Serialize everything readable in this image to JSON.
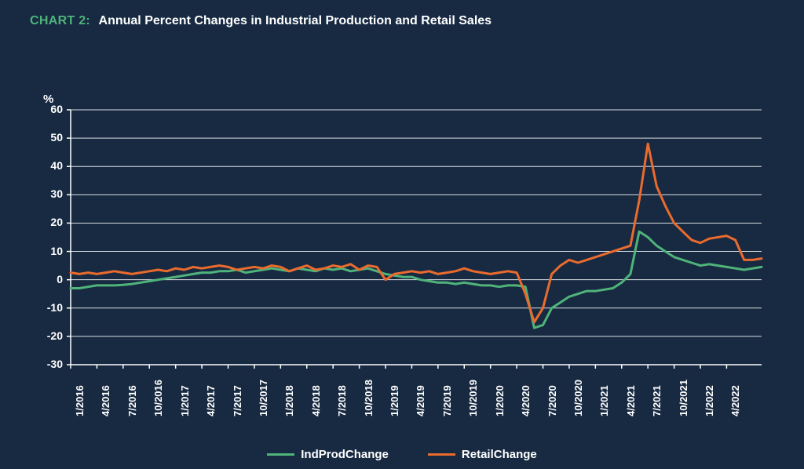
{
  "header": {
    "label": "CHART 2:",
    "label_color": "#4fb37a",
    "title": "Annual Percent Changes in Industrial Production and Retail Sales"
  },
  "chart": {
    "type": "line",
    "background_color": "#172a42",
    "grid_color": "#ffffff",
    "axis_color": "#ffffff",
    "text_color": "#ffffff",
    "y_axis_symbol": "%",
    "ylim": [
      -30,
      60
    ],
    "ytick_step": 10,
    "yticks": [
      -30,
      -20,
      -10,
      0,
      10,
      20,
      30,
      40,
      50,
      60
    ],
    "x_labels": [
      "1/2016",
      "4/2016",
      "7/2016",
      "10/2016",
      "1/2017",
      "4/2017",
      "7/2017",
      "10/2017",
      "1/2018",
      "4/2018",
      "7/2018",
      "10/2018",
      "1/2019",
      "4/2019",
      "7/2019",
      "10/2019",
      "1/2020",
      "4/2020",
      "7/2020",
      "10/2020",
      "1/2021",
      "4/2021",
      "7/2021",
      "10/2021",
      "1/2022",
      "4/2022"
    ],
    "series": [
      {
        "name": "IndProdChange",
        "color": "#4fb37a",
        "line_width": 3,
        "data": [
          -3,
          -3,
          -2.5,
          -2,
          -2,
          -2,
          -1.8,
          -1.5,
          -1,
          -0.5,
          0,
          0.5,
          1,
          1.5,
          2,
          2.5,
          2.5,
          3,
          3,
          3.5,
          2.5,
          3,
          3.5,
          4,
          3.5,
          3,
          4,
          3.5,
          3,
          4,
          3.5,
          4,
          3,
          3.5,
          4,
          3,
          2,
          1.5,
          1,
          1,
          0,
          -0.5,
          -1,
          -1,
          -1.5,
          -1,
          -1.5,
          -2,
          -2,
          -2.5,
          -2,
          -2,
          -2.5,
          -17,
          -16,
          -10,
          -8,
          -6,
          -5,
          -4,
          -4,
          -3.5,
          -3,
          -1,
          2,
          17,
          15,
          12,
          10,
          8,
          7,
          6,
          5,
          5.5,
          5,
          4.5,
          4,
          3.5,
          4,
          4.5
        ]
      },
      {
        "name": "RetailChange",
        "color": "#ea6b2d",
        "line_width": 3,
        "data": [
          2.5,
          2,
          2.5,
          2,
          2.5,
          3,
          2.5,
          2,
          2.5,
          3,
          3.5,
          3,
          4,
          3.5,
          4.5,
          4,
          4.5,
          5,
          4.5,
          3.5,
          4,
          4.5,
          4,
          5,
          4.5,
          3,
          4,
          5,
          3.5,
          4,
          5,
          4.5,
          5.5,
          3.5,
          5,
          4.5,
          0,
          2,
          2.5,
          3,
          2.5,
          3,
          2,
          2.5,
          3,
          4,
          3,
          2.5,
          2,
          2.5,
          3,
          2.5,
          -5,
          -15,
          -10,
          2,
          5,
          7,
          6,
          7,
          8,
          9,
          10,
          11,
          12,
          28,
          48,
          33,
          26,
          20,
          17,
          14,
          13,
          14.5,
          15,
          15.5,
          14,
          7,
          7,
          7.5
        ]
      }
    ],
    "legend": {
      "items": [
        {
          "label": "IndProdChange",
          "color": "#4fb37a"
        },
        {
          "label": "RetailChange",
          "color": "#ea6b2d"
        }
      ]
    }
  }
}
